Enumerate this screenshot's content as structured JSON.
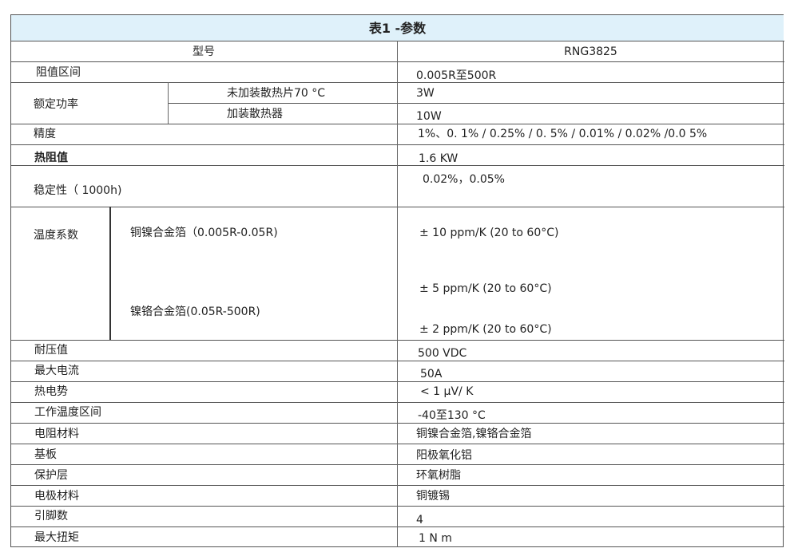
{
  "title": "表1 -参数",
  "header": {
    "label": "型号",
    "value": "RNG3825"
  },
  "rows": {
    "range": {
      "label": "阻值区间",
      "value": "0.005R至500R"
    },
    "power": {
      "label": "额定功率",
      "sub1": "未加装散热片70 °C",
      "val1": "3W",
      "sub2": "加装散热器",
      "val2": "10W"
    },
    "precision": {
      "label": "精度",
      "value": "1%、0. 1% / 0.25% / 0. 5% / 0.01% / 0.02% /0.0 5%"
    },
    "thermal": {
      "label": "热阻值",
      "value": "1.6 KW"
    },
    "stability": {
      "label": "稳定性（ 1000h)",
      "value": "0.02%，0.05%"
    },
    "tcr": {
      "label": "温度系数",
      "sub1": "铜镍合金箔（0.005R-0.05R)",
      "sub2": "镍铬合金箔(0.05R-500R)",
      "val1": "± 10 ppm/K (20 to 60°C)",
      "val2": "± 5 ppm/K (20 to 60°C)",
      "val3": "± 2 ppm/K (20 to 60°C)"
    },
    "list": [
      {
        "label": "耐压值",
        "value": "500 VDC"
      },
      {
        "label": "最大电流",
        "value": "50A"
      },
      {
        "label": "热电势",
        "value": "< 1 μV/ K"
      },
      {
        "label": "工作温度区间",
        "value": "-40至130 °C"
      },
      {
        "label": "电阻材料",
        "value": "铜镍合金箔,镍铬合金箔"
      },
      {
        "label": "基板",
        "value": "阳极氧化铝"
      },
      {
        "label": "保护层",
        "value": "环氧树脂"
      },
      {
        "label": "电极材料",
        "value": "铜镀锡"
      },
      {
        "label": "引脚数",
        "value": "4"
      },
      {
        "label": "最大扭矩",
        "value": "1 N m"
      }
    ]
  }
}
